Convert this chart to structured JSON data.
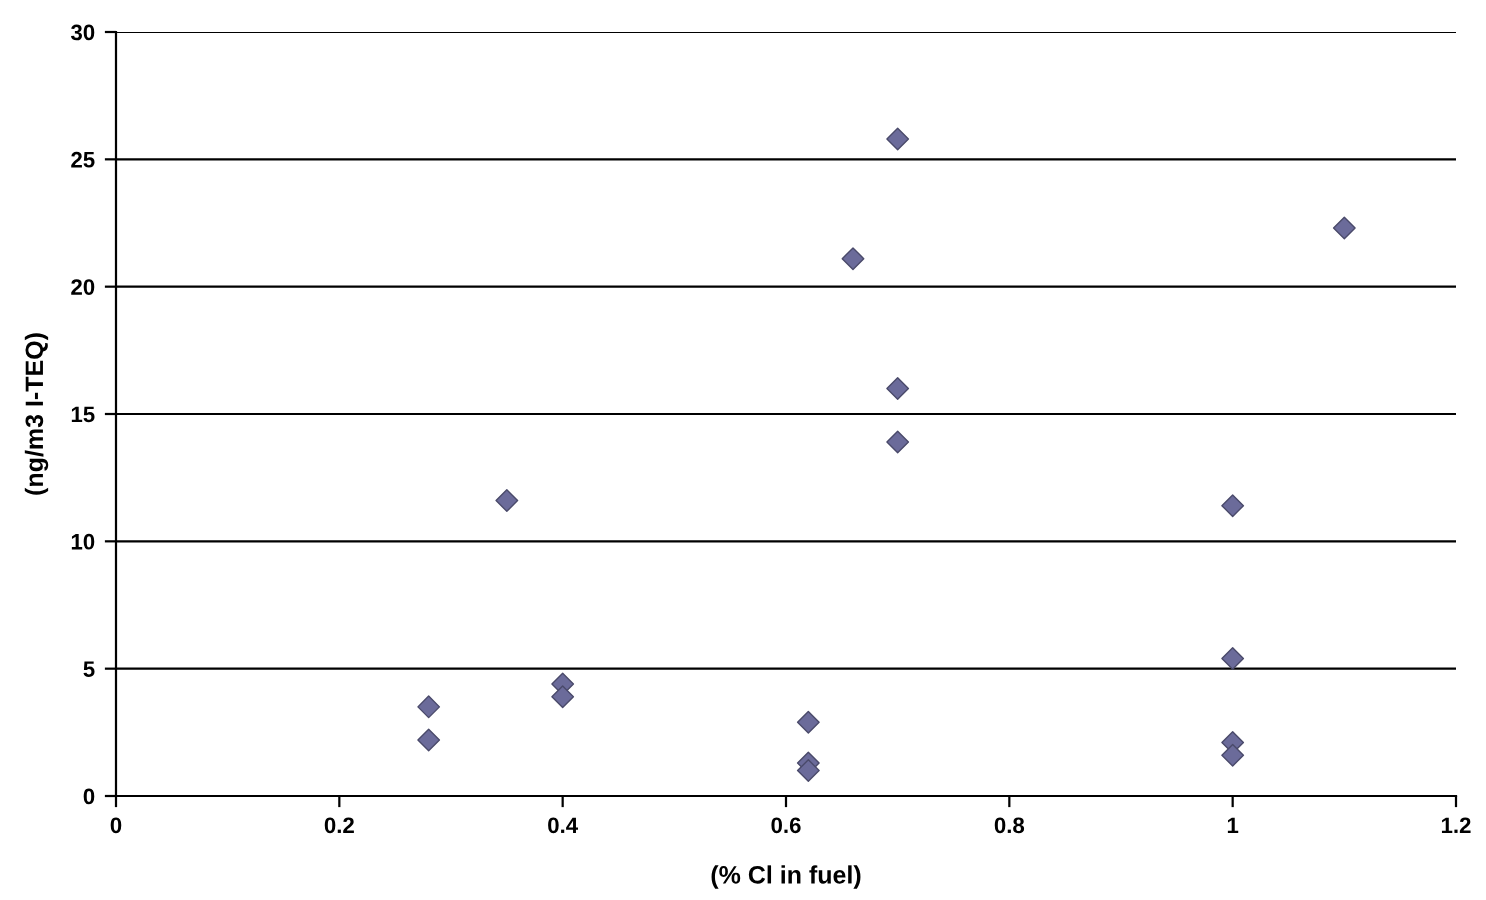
{
  "chart_data": {
    "type": "scatter",
    "xlabel": "(% Cl in fuel)",
    "ylabel": "(ng/m3 I-TEQ)",
    "x": [
      0.28,
      0.28,
      0.35,
      0.4,
      0.4,
      0.62,
      0.62,
      0.62,
      0.66,
      0.7,
      0.7,
      0.7,
      1,
      1,
      1,
      1,
      1.1
    ],
    "values": [
      3.5,
      2.2,
      11.6,
      4.4,
      3.9,
      2.9,
      1.3,
      1.0,
      21.1,
      25.8,
      16.0,
      13.9,
      11.4,
      5.4,
      2.1,
      1.6,
      22.3
    ],
    "color": "#6b6b9a",
    "marker": "diamond",
    "xlim": [
      0,
      1.2
    ],
    "xticks": [
      0,
      0.2,
      0.4,
      0.6,
      0.8,
      1,
      1.2
    ],
    "ylim": [
      0,
      30
    ],
    "yticks": [
      0,
      5,
      10,
      15,
      20,
      25,
      30
    ],
    "grid": "y"
  }
}
